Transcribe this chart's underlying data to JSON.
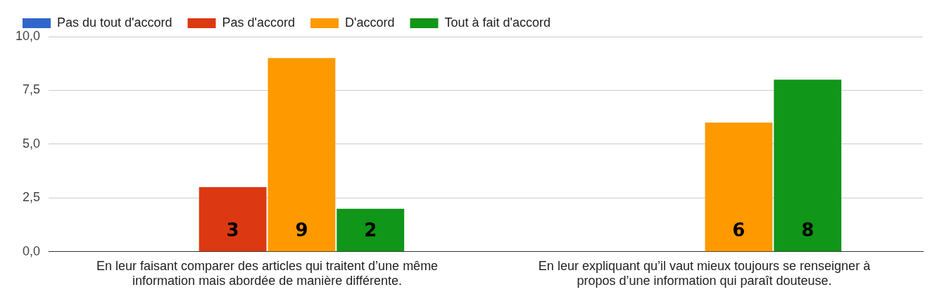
{
  "chart_data": {
    "type": "bar",
    "categories": [
      "En leur faisant comparer des articles qui traitent d’une même information mais abordée de manière différente.",
      "En leur expliquant qu’il vaut mieux toujours se renseigner à propos d’une information qui paraît douteuse."
    ],
    "series": [
      {
        "name": "Pas du tout d'accord",
        "color": "#3366cc",
        "values": [
          0,
          0
        ],
        "value_labels": [
          null,
          null
        ]
      },
      {
        "name": "Pas d'accord",
        "color": "#dc3912",
        "values": [
          3,
          0
        ],
        "value_labels": [
          "3",
          null
        ]
      },
      {
        "name": "D'accord",
        "color": "#ff9900",
        "values": [
          9,
          6
        ],
        "value_labels": [
          "9",
          "6"
        ]
      },
      {
        "name": "Tout à fait d'accord",
        "color": "#109618",
        "values": [
          2,
          8
        ],
        "value_labels": [
          "2",
          "8"
        ]
      }
    ],
    "ylim": [
      0,
      10
    ],
    "yticks": [
      {
        "value": 0,
        "label": "0,0"
      },
      {
        "value": 2.5,
        "label": "2,5"
      },
      {
        "value": 5,
        "label": "5,0"
      },
      {
        "value": 7.5,
        "label": "7,5"
      },
      {
        "value": 10,
        "label": "10,0"
      }
    ],
    "grid": "y",
    "legend": "top left"
  }
}
